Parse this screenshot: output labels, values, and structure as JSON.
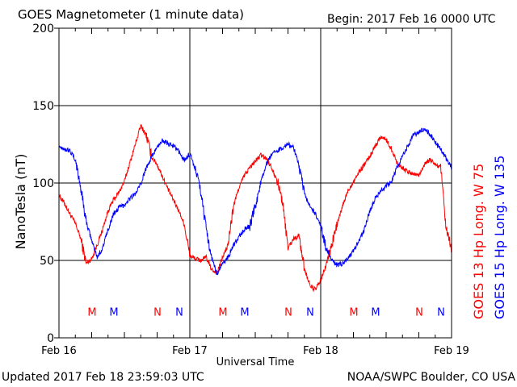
{
  "header": {
    "title": "GOES Magnetometer (1 minute data)",
    "begin_label": "Begin:  2017 Feb 16 0000 UTC"
  },
  "footer": {
    "updated": "Updated 2017 Feb 18 23:59:03 UTC",
    "credit": "NOAA/SWPC Boulder, CO USA"
  },
  "colors": {
    "goes13": "#ff0000",
    "goes15": "#0000ff",
    "axis": "#000000"
  },
  "chart_data": {
    "type": "line",
    "title": "GOES Magnetometer (1 minute data)",
    "xlabel": "Universal Time",
    "ylabel": "NanoTesla (nT)",
    "xlim": [
      0,
      72
    ],
    "ylim": [
      0,
      200
    ],
    "x_unit": "hours since 2017 Feb 16 0000 UTC",
    "yticks": [
      0,
      50,
      100,
      150,
      200
    ],
    "xticks": [
      {
        "x": 0,
        "label": "Feb 16"
      },
      {
        "x": 24,
        "label": "Feb 17"
      },
      {
        "x": 48,
        "label": "Feb 18"
      },
      {
        "x": 72,
        "label": "Feb 19"
      }
    ],
    "grid": true,
    "series": [
      {
        "name": "GOES 13 Hp  Long. W 75",
        "color": "#ff0000",
        "x": [
          0,
          1,
          2,
          3,
          4,
          5,
          6,
          7,
          8,
          9,
          10,
          11,
          12,
          13,
          14,
          15,
          16,
          17,
          18,
          19,
          20,
          21,
          22,
          23,
          24,
          25,
          26,
          27,
          28,
          29,
          30,
          31,
          32,
          33,
          34,
          35,
          36,
          37,
          38,
          39,
          40,
          41,
          42,
          43,
          44,
          45,
          46,
          47,
          48,
          49,
          50,
          51,
          52,
          53,
          54,
          55,
          56,
          57,
          58,
          59,
          60,
          61,
          62,
          63,
          64,
          65,
          66,
          67,
          68,
          69,
          70,
          71,
          72
        ],
        "y": [
          92,
          87,
          80,
          74,
          64,
          48,
          51,
          60,
          70,
          82,
          89,
          94,
          101,
          113,
          125,
          137,
          131,
          117,
          112,
          104,
          96,
          89,
          82,
          73,
          53,
          51,
          50,
          52,
          44,
          42,
          52,
          60,
          85,
          97,
          105,
          110,
          114,
          118,
          116,
          110,
          102,
          88,
          58,
          64,
          66,
          45,
          34,
          31,
          37,
          47,
          60,
          73,
          85,
          95,
          101,
          107,
          112,
          117,
          124,
          130,
          128,
          122,
          113,
          110,
          107,
          106,
          105,
          112,
          115,
          112,
          110,
          70,
          57
        ]
      },
      {
        "name": "GOES 15 Hp  Long. W 135",
        "color": "#0000ff",
        "x": [
          0,
          1,
          2,
          3,
          4,
          5,
          6,
          7,
          8,
          9,
          10,
          11,
          12,
          13,
          14,
          15,
          16,
          17,
          18,
          19,
          20,
          21,
          22,
          23,
          24,
          25,
          26,
          27,
          28,
          29,
          30,
          31,
          32,
          33,
          34,
          35,
          36,
          37,
          38,
          39,
          40,
          41,
          42,
          43,
          44,
          45,
          46,
          47,
          48,
          49,
          50,
          51,
          52,
          53,
          54,
          55,
          56,
          57,
          58,
          59,
          60,
          61,
          62,
          63,
          64,
          65,
          66,
          67,
          68,
          69,
          70,
          71,
          72
        ],
        "y": [
          124,
          122,
          121,
          115,
          97,
          75,
          63,
          52,
          58,
          70,
          80,
          84,
          86,
          90,
          93,
          99,
          110,
          117,
          123,
          128,
          125,
          124,
          120,
          115,
          119,
          109,
          95,
          70,
          52,
          41,
          48,
          52,
          60,
          65,
          70,
          72,
          85,
          100,
          112,
          118,
          121,
          123,
          125,
          123,
          112,
          93,
          85,
          80,
          72,
          58,
          51,
          47,
          48,
          51,
          56,
          62,
          70,
          82,
          90,
          95,
          98,
          101,
          110,
          118,
          124,
          131,
          133,
          135,
          132,
          126,
          122,
          116,
          110
        ]
      }
    ],
    "annotations": [
      {
        "x": 8,
        "label": "M",
        "series": "GOES 13 Hp  Long. W 75"
      },
      {
        "x": 12,
        "label": "M",
        "series": "GOES 15 Hp  Long. W 135"
      },
      {
        "x": 20,
        "label": "N",
        "series": "GOES 13 Hp  Long. W 75"
      },
      {
        "x": 24,
        "label": "N",
        "series": "GOES 15 Hp  Long. W 135"
      },
      {
        "x": 32,
        "label": "M",
        "series": "GOES 13 Hp  Long. W 75"
      },
      {
        "x": 36,
        "label": "M",
        "series": "GOES 15 Hp  Long. W 135"
      },
      {
        "x": 44,
        "label": "N",
        "series": "GOES 13 Hp  Long. W 75"
      },
      {
        "x": 48,
        "label": "N",
        "series": "GOES 15 Hp  Long. W 135"
      },
      {
        "x": 56,
        "label": "M",
        "series": "GOES 13 Hp  Long. W 75"
      },
      {
        "x": 60,
        "label": "M",
        "series": "GOES 15 Hp  Long. W 135"
      },
      {
        "x": 68,
        "label": "N",
        "series": "GOES 13 Hp  Long. W 75"
      },
      {
        "x": 72,
        "label": "N",
        "series": "GOES 15 Hp  Long. W 135"
      }
    ],
    "annotation_y": 17
  }
}
